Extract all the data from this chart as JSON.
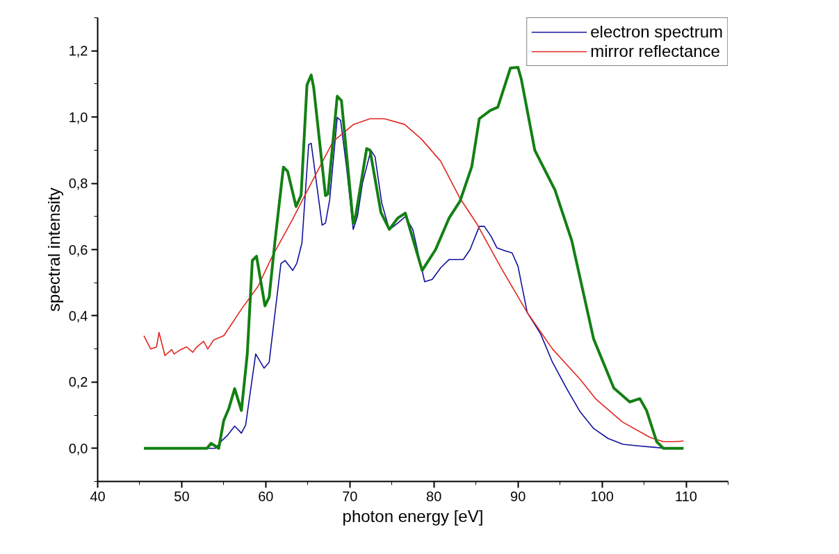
{
  "chart_data": {
    "type": "line",
    "xlabel": "photon energy [eV]",
    "ylabel": "spectral intensity",
    "xlim": [
      40,
      115
    ],
    "xticks": [
      40,
      50,
      60,
      70,
      80,
      90,
      100,
      110
    ],
    "ylim": [
      -0.1,
      1.3
    ],
    "yticks": [
      {
        "value": 0,
        "label": "0,0"
      },
      {
        "value": 0.2,
        "label": "0,2"
      },
      {
        "value": 0.4,
        "label": "0,4"
      },
      {
        "value": 0.6,
        "label": "0,6"
      },
      {
        "value": 0.8,
        "label": "0,8"
      },
      {
        "value": 1.0,
        "label": "1,0"
      },
      {
        "value": 1.2,
        "label": "1,2"
      }
    ],
    "grid": false,
    "legend": "top right",
    "marker": "none",
    "line_style": "solid",
    "series": [
      {
        "name": "electron spectrum",
        "color": "#10109c",
        "x": [
          45.5,
          50,
          54.0,
          54.8,
          55.4,
          56.3,
          57.1,
          57.6,
          58.8,
          59.8,
          60.4,
          61.8,
          62.3,
          63.2,
          63.7,
          64.3,
          65.1,
          65.4,
          66.7,
          67.1,
          67.6,
          68.5,
          68.9,
          69.6,
          70.4,
          70.9,
          71.5,
          72.5,
          73.0,
          73.8,
          74.7,
          75.7,
          76.6,
          77.5,
          78.2,
          78.9,
          79.8,
          80.8,
          81.8,
          82.6,
          83.5,
          84.3,
          85.4,
          86.0,
          86.8,
          87.5,
          88.4,
          89.3,
          90.0,
          91.1,
          92.7,
          94.1,
          95.8,
          97.4,
          99.0,
          100.7,
          102.5,
          104.5,
          106.3,
          107.5
        ],
        "values": [
          0,
          0,
          0,
          0.024,
          0.038,
          0.067,
          0.046,
          0.07,
          0.285,
          0.242,
          0.26,
          0.558,
          0.567,
          0.537,
          0.559,
          0.62,
          0.917,
          0.921,
          0.674,
          0.68,
          0.75,
          0.999,
          0.99,
          0.85,
          0.661,
          0.7,
          0.8,
          0.9,
          0.88,
          0.74,
          0.66,
          0.68,
          0.7,
          0.66,
          0.58,
          0.503,
          0.51,
          0.545,
          0.57,
          0.57,
          0.57,
          0.6,
          0.67,
          0.67,
          0.64,
          0.605,
          0.597,
          0.59,
          0.55,
          0.41,
          0.345,
          0.26,
          0.18,
          0.11,
          0.06,
          0.03,
          0.012,
          0.007,
          0.003,
          0
        ]
      },
      {
        "name": "mirror reflectance",
        "color": "#e0261e",
        "x": [
          45.5,
          46.3,
          47.0,
          47.3,
          48.0,
          48.8,
          49.1,
          49.8,
          50.6,
          51.3,
          51.8,
          52.6,
          53.1,
          53.8,
          55.0,
          55.8,
          57.1,
          59.1,
          60.7,
          63.1,
          65.7,
          68.0,
          70.4,
          72.4,
          74.1,
          76.5,
          78.5,
          80.8,
          83.1,
          85.1,
          88.1,
          91.1,
          94.1,
          97.4,
          99.3,
          102.4,
          105.7,
          107.3,
          108.5,
          109.7
        ],
        "values": [
          0.34,
          0.3,
          0.306,
          0.35,
          0.28,
          0.298,
          0.285,
          0.297,
          0.306,
          0.29,
          0.306,
          0.323,
          0.3,
          0.327,
          0.34,
          0.37,
          0.42,
          0.49,
          0.576,
          0.687,
          0.815,
          0.926,
          0.977,
          0.995,
          0.995,
          0.978,
          0.934,
          0.867,
          0.755,
          0.678,
          0.54,
          0.41,
          0.3,
          0.208,
          0.148,
          0.08,
          0.033,
          0.02,
          0.02,
          0.022
        ]
      },
      {
        "color": "#138013",
        "x": [
          45.5,
          53.0,
          53.5,
          54.4,
          55.0,
          55.6,
          56.3,
          57.1,
          57.8,
          58.4,
          58.9,
          59.9,
          60.4,
          61.1,
          62.1,
          62.6,
          63.6,
          64.2,
          64.9,
          65.4,
          65.7,
          67.1,
          67.4,
          68.5,
          69.0,
          70.4,
          70.7,
          72.0,
          72.4,
          73.7,
          74.7,
          75.7,
          76.6,
          78.6,
          80.2,
          81.8,
          83.1,
          84.5,
          85.4,
          86.7,
          87.6,
          89.1,
          90.0,
          90.4,
          92.0,
          94.4,
          96.4,
          99.0,
          101.4,
          103.3,
          104.5,
          105.3,
          106.5,
          107.3,
          109.7
        ],
        "values": [
          0,
          0,
          0.015,
          0,
          0.084,
          0.12,
          0.18,
          0.114,
          0.285,
          0.567,
          0.58,
          0.43,
          0.456,
          0.627,
          0.849,
          0.836,
          0.73,
          0.764,
          1.097,
          1.127,
          1.089,
          0.763,
          0.768,
          1.063,
          1.05,
          0.679,
          0.703,
          0.905,
          0.9,
          0.712,
          0.661,
          0.695,
          0.71,
          0.537,
          0.6,
          0.695,
          0.746,
          0.85,
          0.995,
          1.02,
          1.03,
          1.148,
          1.15,
          1.114,
          0.9,
          0.78,
          0.627,
          0.33,
          0.182,
          0.14,
          0.15,
          0.114,
          0.02,
          0,
          0
        ]
      }
    ]
  }
}
